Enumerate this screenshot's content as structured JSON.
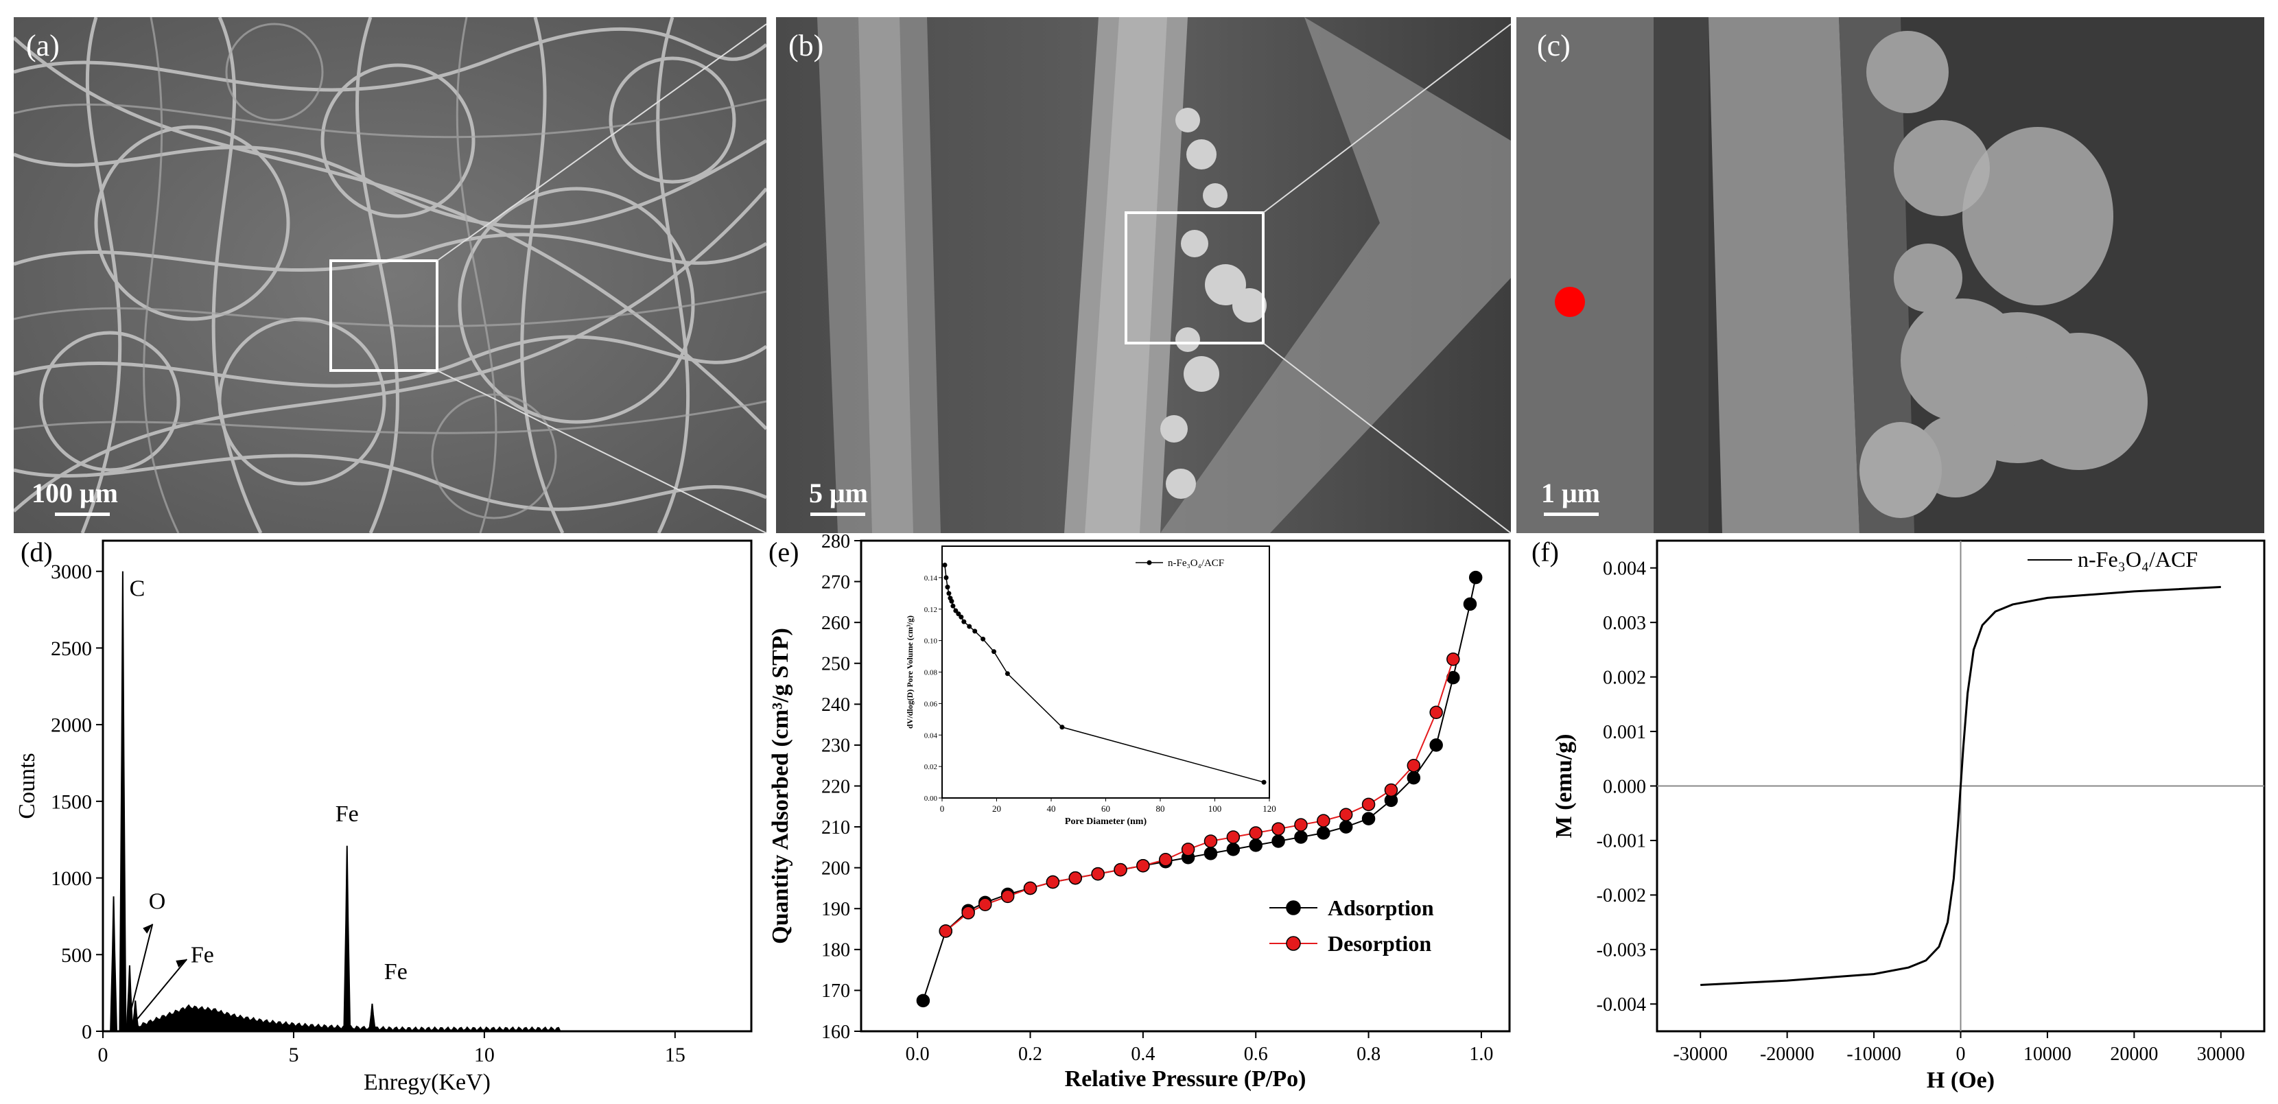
{
  "sem_panels": [
    {
      "label": "(a)",
      "scale": "100 μm"
    },
    {
      "label": "(b)",
      "scale": "5 μm"
    },
    {
      "label": "(c)",
      "scale": "1 μm"
    }
  ],
  "chart_data": [
    {
      "panel": "(d)",
      "type": "line",
      "xlabel": "Enregy(KeV)",
      "ylabel": "Counts",
      "xlim": [
        0,
        17
      ],
      "ylim": [
        0,
        3200
      ],
      "xticks": [
        "0",
        "5",
        "10",
        "15"
      ],
      "yticks": [
        "0",
        "500",
        "1000",
        "1500",
        "2000",
        "2500",
        "3000"
      ],
      "peaks": [
        {
          "x": 0.28,
          "y": 880
        },
        {
          "x": 0.52,
          "y": 3000
        },
        {
          "x": 0.7,
          "y": 430
        },
        {
          "x": 0.85,
          "y": 200
        },
        {
          "x": 6.4,
          "y": 1210
        },
        {
          "x": 7.06,
          "y": 180
        }
      ],
      "annotations": [
        {
          "text": "C",
          "x": 0.52,
          "y": 3000
        },
        {
          "text": "O",
          "x": 0.7,
          "y": 430
        },
        {
          "text": "Fe",
          "x": 0.85,
          "y": 200
        },
        {
          "text": "Fe",
          "x": 6.4,
          "y": 1210
        },
        {
          "text": "Fe",
          "x": 7.06,
          "y": 180
        }
      ]
    },
    {
      "panel": "(e)",
      "type": "line",
      "xlabel": "Relative Pressure (P/Po)",
      "ylabel": "Quantity Adsorbed (cm³/g STP)",
      "xlim": [
        -0.1,
        1.05
      ],
      "ylim": [
        160,
        280
      ],
      "xticks": [
        "0.0",
        "0.2",
        "0.4",
        "0.6",
        "0.8",
        "1.0"
      ],
      "yticks": [
        "160",
        "170",
        "180",
        "190",
        "200",
        "210",
        "220",
        "230",
        "240",
        "250",
        "260",
        "270",
        "280"
      ],
      "legend_position": "bottom-right",
      "series": [
        {
          "name": "Adsorption",
          "color": "#000000",
          "x": [
            0.01,
            0.05,
            0.09,
            0.12,
            0.16,
            0.2,
            0.24,
            0.28,
            0.32,
            0.36,
            0.4,
            0.44,
            0.48,
            0.52,
            0.56,
            0.6,
            0.64,
            0.68,
            0.72,
            0.76,
            0.8,
            0.84,
            0.88,
            0.92,
            0.95,
            0.98,
            0.99
          ],
          "y": [
            167.5,
            184.5,
            189.5,
            191.5,
            193.5,
            195.0,
            196.5,
            197.5,
            198.5,
            199.5,
            200.5,
            201.5,
            202.5,
            203.5,
            204.5,
            205.5,
            206.5,
            207.5,
            208.5,
            210.0,
            212.0,
            216.5,
            222.0,
            230.0,
            246.5,
            264.5,
            271.0
          ]
        },
        {
          "name": "Desorption",
          "color": "#e41a1c",
          "x": [
            0.05,
            0.09,
            0.12,
            0.16,
            0.2,
            0.24,
            0.28,
            0.32,
            0.36,
            0.4,
            0.44,
            0.48,
            0.52,
            0.56,
            0.6,
            0.64,
            0.68,
            0.72,
            0.76,
            0.8,
            0.84,
            0.88,
            0.92,
            0.95
          ],
          "y": [
            184.5,
            189.0,
            191.0,
            193.0,
            195.0,
            196.5,
            197.5,
            198.5,
            199.5,
            200.5,
            202.0,
            204.5,
            206.5,
            207.5,
            208.5,
            209.5,
            210.5,
            211.5,
            213.0,
            215.5,
            219.0,
            225.0,
            238.0,
            251.0
          ]
        }
      ],
      "inset": {
        "type": "line",
        "xlabel": "Pore Diameter (nm)",
        "ylabel": "dV/dlog(D) Pore Volume (cm³/g)",
        "xlim": [
          0,
          120
        ],
        "ylim": [
          0,
          0.16
        ],
        "xticks": [
          "0",
          "20",
          "40",
          "60",
          "80",
          "100",
          "120"
        ],
        "yticks": [
          "0.00",
          "0.02",
          "0.04",
          "0.06",
          "0.08",
          "0.10",
          "0.12",
          "0.14"
        ],
        "legend": "n-Fe₃O₄/ACF",
        "x": [
          1,
          1.5,
          2,
          2.5,
          3,
          3.5,
          4,
          5,
          6,
          7,
          8,
          10,
          12,
          15,
          19,
          24,
          44,
          118
        ],
        "y": [
          0.148,
          0.14,
          0.134,
          0.13,
          0.127,
          0.125,
          0.122,
          0.119,
          0.117,
          0.115,
          0.112,
          0.109,
          0.106,
          0.101,
          0.093,
          0.079,
          0.045,
          0.01
        ]
      }
    },
    {
      "panel": "(f)",
      "type": "line",
      "xlabel": "H (Oe)",
      "ylabel": "M (emu/g)",
      "xlim": [
        -35000,
        35000
      ],
      "ylim": [
        -0.0045,
        0.0045
      ],
      "xticks": [
        "-30000",
        "-20000",
        "-10000",
        "0",
        "10000",
        "20000",
        "30000"
      ],
      "yticks": [
        "-0.004",
        "-0.003",
        "-0.002",
        "-0.001",
        "0.000",
        "0.001",
        "0.002",
        "0.003",
        "0.004"
      ],
      "legend_position": "top-right",
      "series": [
        {
          "name": "n-Fe₃O₄/ACF",
          "color": "#000000",
          "x": [
            -30000,
            -20000,
            -10000,
            -6000,
            -4000,
            -2500,
            -1500,
            -800,
            -300,
            0,
            300,
            800,
            1500,
            2500,
            4000,
            6000,
            10000,
            20000,
            30000
          ],
          "y": [
            -0.00365,
            -0.00357,
            -0.00345,
            -0.00333,
            -0.0032,
            -0.00295,
            -0.0025,
            -0.0017,
            -0.0007,
            0.0,
            0.0007,
            0.0017,
            0.0025,
            0.00295,
            0.0032,
            0.00333,
            0.00345,
            0.00357,
            0.00365
          ]
        }
      ]
    }
  ]
}
